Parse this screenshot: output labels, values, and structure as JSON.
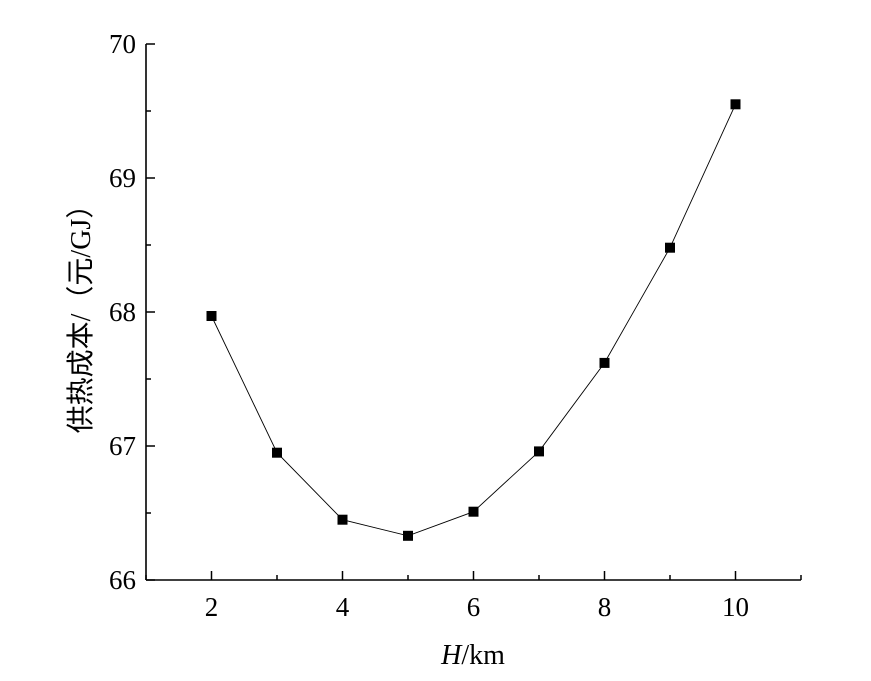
{
  "chart_data": {
    "type": "line",
    "xlabel_var": "H",
    "xlabel_unit": "/km",
    "ylabel": "供热成本/（元/GJ）",
    "x": [
      2,
      3,
      4,
      5,
      6,
      7,
      8,
      9,
      10
    ],
    "y": [
      67.97,
      66.95,
      66.45,
      66.33,
      66.51,
      66.96,
      67.62,
      68.48,
      69.55
    ],
    "xlim": [
      1,
      11
    ],
    "ylim": [
      66,
      70
    ],
    "x_ticks": [
      2,
      4,
      6,
      8,
      10
    ],
    "y_ticks": [
      66,
      67,
      68,
      69,
      70
    ],
    "x_tick_labels": [
      "2",
      "4",
      "6",
      "8",
      "10"
    ],
    "y_tick_labels": [
      "66",
      "67",
      "68",
      "69",
      "70"
    ],
    "marker": "square",
    "line_color": "#000000",
    "marker_color": "#000000",
    "grid": false,
    "legend": false
  }
}
